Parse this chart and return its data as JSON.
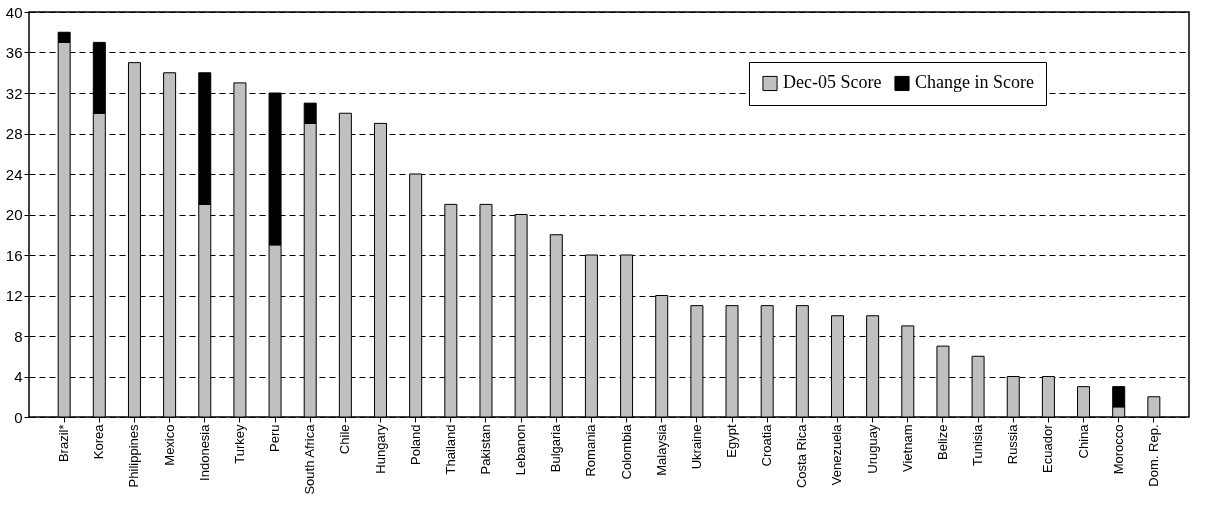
{
  "chart_data": {
    "type": "bar",
    "stacked": true,
    "categories": [
      "Brazil*",
      "Korea",
      "Philippines",
      "Mexico",
      "Indonesia",
      "Turkey",
      "Peru",
      "South Africa",
      "Chile",
      "Hungary",
      "Poland",
      "Thailand",
      "Pakistan",
      "Lebanon",
      "Bulgaria",
      "Romania",
      "Colombia",
      "Malaysia",
      "Ukraine",
      "Egypt",
      "Croatia",
      "Costa Rica",
      "Venezuela",
      "Uruguay",
      "Vietnam",
      "Belize",
      "Tunisia",
      "Russia",
      "Ecuador",
      "China",
      "Morocco",
      "Dom. Rep."
    ],
    "series": [
      {
        "name": "Dec-05 Score",
        "color": "#c0c0c0",
        "values": [
          37,
          30,
          35,
          34,
          21,
          33,
          17,
          29,
          30,
          29,
          24,
          21,
          21,
          20,
          18,
          16,
          16,
          12,
          11,
          11,
          11,
          11,
          10,
          10,
          9,
          7,
          6,
          4,
          4,
          3,
          1,
          2
        ]
      },
      {
        "name": "Change in Score",
        "color": "#000000",
        "values": [
          1,
          7,
          null,
          null,
          13,
          null,
          15,
          2,
          null,
          null,
          null,
          null,
          null,
          null,
          null,
          null,
          null,
          null,
          null,
          null,
          null,
          null,
          null,
          null,
          null,
          null,
          null,
          null,
          null,
          null,
          2,
          null
        ]
      }
    ],
    "ylim": [
      0,
      40
    ],
    "yticks": [
      0,
      4,
      8,
      12,
      16,
      20,
      24,
      28,
      32,
      36,
      40
    ],
    "grid": "y",
    "legend": "top right"
  }
}
